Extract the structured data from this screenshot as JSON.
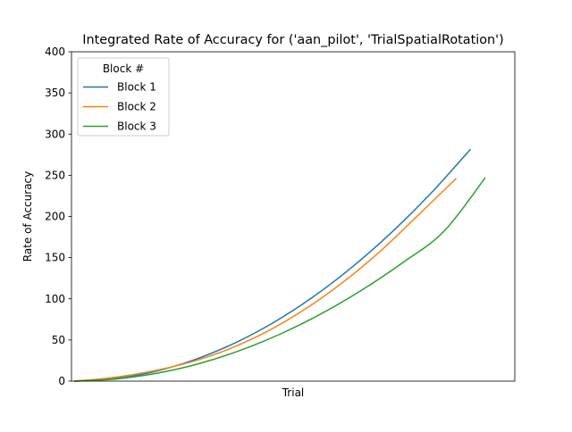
{
  "chart_data": {
    "type": "line",
    "title": "Integrated Rate of Accuracy for ('aan_pilot', 'TrialSpatialRotation')",
    "xlabel": "Trial",
    "ylabel": "Rate of Accuracy",
    "xlim": [
      0,
      100
    ],
    "ylim": [
      0,
      400
    ],
    "yticks": [
      "0",
      "50",
      "100",
      "150",
      "200",
      "250",
      "300",
      "350",
      "400"
    ],
    "grid": false,
    "legend": {
      "title": "Block #",
      "placement": "upper-left"
    },
    "series": [
      {
        "name": "Block 1",
        "color": "#1f77b4",
        "x": [
          0,
          10,
          20,
          30,
          40,
          50,
          60,
          70,
          80,
          90,
          100
        ],
        "y": [
          0,
          2.9,
          11.3,
          25.4,
          45.1,
          70.4,
          101.4,
          138.0,
          180.3,
          228.2,
          281.7
        ]
      },
      {
        "name": "Block 2",
        "color": "#ff7f0e",
        "x": [
          0,
          10,
          20,
          30,
          40,
          50,
          60,
          70,
          80,
          90,
          100
        ],
        "y": [
          0,
          4.2,
          11.7,
          22.6,
          38.0,
          59.2,
          86.2,
          118.9,
          157.3,
          201.4,
          246.3
        ]
      },
      {
        "name": "Block 3",
        "color": "#2ca02c",
        "x": [
          0,
          10,
          20,
          30,
          40,
          50,
          60,
          70,
          80,
          90,
          100
        ],
        "y": [
          0,
          2.5,
          9.4,
          20.7,
          36.6,
          56.9,
          81.6,
          110.7,
          144.2,
          182.2,
          247.1
        ]
      }
    ]
  }
}
